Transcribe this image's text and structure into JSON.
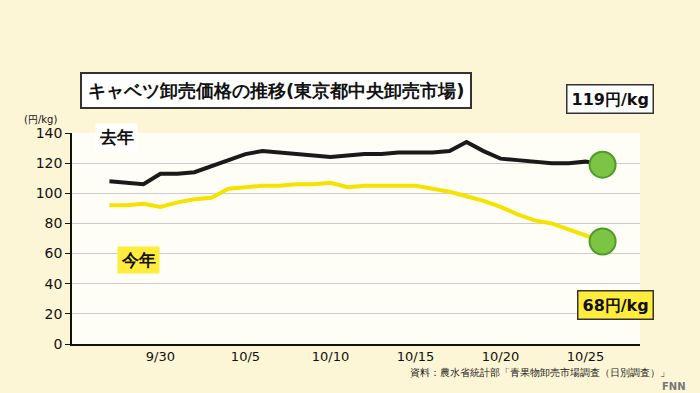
{
  "chart_data": {
    "type": "line",
    "title": "キャベツ卸売価格の推移(東京都中央卸売市場)",
    "y_label": "(円/kg)",
    "categories": [
      null,
      null,
      null,
      "9/30",
      null,
      null,
      null,
      null,
      "10/5",
      null,
      null,
      null,
      null,
      "10/10",
      null,
      null,
      null,
      null,
      "10/15",
      null,
      null,
      null,
      null,
      "10/20",
      null,
      null,
      null,
      null,
      "10/25",
      null
    ],
    "series": [
      {
        "name": "去年",
        "color": "#1a1a1a",
        "values": [
          108,
          107,
          106,
          113,
          113,
          114,
          118,
          122,
          126,
          128,
          127,
          126,
          125,
          124,
          125,
          126,
          126,
          127,
          127,
          127,
          128,
          134,
          128,
          123,
          122,
          121,
          120,
          120,
          121,
          119
        ]
      },
      {
        "name": "今年",
        "color": "#f5e200",
        "values": [
          92,
          92,
          93,
          91,
          94,
          96,
          97,
          103,
          104,
          105,
          105,
          106,
          106,
          107,
          104,
          105,
          105,
          105,
          105,
          103,
          101,
          98,
          95,
          91,
          86,
          82,
          80,
          76,
          72,
          68
        ]
      }
    ],
    "ylim": [
      0,
      140
    ],
    "yticks": [
      0,
      20,
      40,
      60,
      80,
      100,
      120,
      140
    ],
    "grid": true,
    "annotations": [
      {
        "text": "119円/kg",
        "series": "去年"
      },
      {
        "text": "68円/kg",
        "series": "今年"
      }
    ],
    "source": "資料：農水省統計部「青果物卸売市場調査（日別調査）」",
    "logo": "FNN"
  }
}
